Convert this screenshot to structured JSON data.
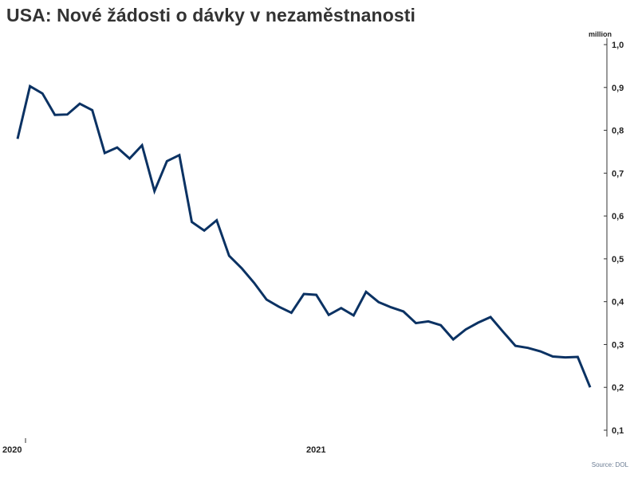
{
  "header": {
    "title": "USA: Nové žádosti o dávky v nezaměstnanosti",
    "unit": "million"
  },
  "footer": {
    "source": "Source: DOL"
  },
  "colors": {
    "line": "#0b3263",
    "axis": "#333333"
  },
  "chart_data": {
    "type": "line",
    "title": "USA: Nové žádosti o dávky v nezaměstnanosti",
    "ylabel": "million",
    "ylim": [
      0.1,
      1.0
    ],
    "y_ticks": [
      "0,1",
      "0,2",
      "0,3",
      "0,4",
      "0,5",
      "0,6",
      "0,7",
      "0,8",
      "0,9",
      "1,0"
    ],
    "x_ticks": [
      "2020",
      "2021"
    ],
    "grid": false,
    "series": [
      {
        "values": [
          0.78,
          0.903,
          0.886,
          0.836,
          0.837,
          0.862,
          0.847,
          0.747,
          0.76,
          0.734,
          0.765,
          0.658,
          0.728,
          0.742,
          0.586,
          0.566,
          0.59,
          0.507,
          0.478,
          0.444,
          0.405,
          0.388,
          0.374,
          0.418,
          0.416,
          0.369,
          0.385,
          0.368,
          0.423,
          0.399,
          0.387,
          0.377,
          0.35,
          0.354,
          0.345,
          0.312,
          0.335,
          0.351,
          0.364,
          0.33,
          0.297,
          0.292,
          0.284,
          0.272,
          0.27,
          0.271,
          0.2
        ]
      }
    ]
  }
}
